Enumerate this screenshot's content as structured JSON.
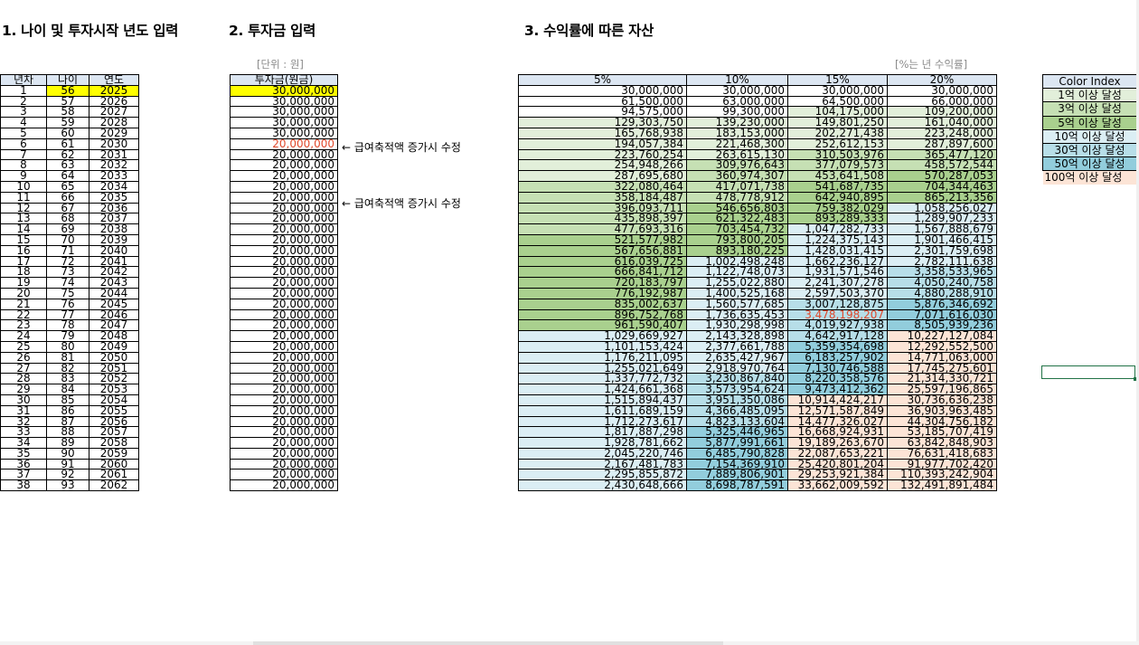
{
  "titles": {
    "s1": "1. 나이 및 투자시작 년도 입력",
    "s2": "2. 투자금 입력",
    "s3": "3. 수익률에 따른 자산"
  },
  "units": {
    "won": "[단위 : 원]",
    "rate": "[%는 년 수익률]"
  },
  "left_headers": [
    "년차",
    "나이",
    "연도"
  ],
  "invest_header": "투자금(원금)",
  "rate_headers": [
    "5%",
    "10%",
    "15%",
    "20%"
  ],
  "notes": [
    {
      "row": 6,
      "text": "← 급여축적액 증가시 수정"
    },
    {
      "row": 11,
      "text": "← 급여축적액 증가시 수정"
    }
  ],
  "colors": {
    "yellow": "#ffff00",
    "tier1": "#e2efda",
    "tier3": "#c6e0b4",
    "tier5": "#a9d08e",
    "tier10": "#dbeef4",
    "tier30": "#b7dee8",
    "tier50": "#92cddc",
    "tier100": "#fce4d6",
    "header": "#dce6f2",
    "red_text": "#e0482b"
  },
  "color_index": {
    "title": "Color Index",
    "items": [
      {
        "label": "1억 이상 달성",
        "color": "#e2efda"
      },
      {
        "label": "3억 이상 달성",
        "color": "#c6e0b4"
      },
      {
        "label": "5억 이상 달성",
        "color": "#a9d08e"
      },
      {
        "label": "10억 이상 달성",
        "color": "#dbeef4"
      },
      {
        "label": "30억 이상 달성",
        "color": "#b7dee8"
      },
      {
        "label": "50억 이상 달성",
        "color": "#92cddc"
      },
      {
        "label": "100억 이상 달성",
        "color": "#fce4d6"
      }
    ]
  },
  "rows": [
    {
      "n": "1",
      "age": "56",
      "year": "2025",
      "invest": "30,000,000",
      "vals": [
        "30,000,000",
        "30,000,000",
        "30,000,000",
        "30,000,000"
      ]
    },
    {
      "n": "2",
      "age": "57",
      "year": "2026",
      "invest": "30,000,000",
      "vals": [
        "61,500,000",
        "63,000,000",
        "64,500,000",
        "66,000,000"
      ]
    },
    {
      "n": "3",
      "age": "58",
      "year": "2027",
      "invest": "30,000,000",
      "vals": [
        "94,575,000",
        "99,300,000",
        "104,175,000",
        "109,200,000"
      ]
    },
    {
      "n": "4",
      "age": "59",
      "year": "2028",
      "invest": "30,000,000",
      "vals": [
        "129,303,750",
        "139,230,000",
        "149,801,250",
        "161,040,000"
      ]
    },
    {
      "n": "5",
      "age": "60",
      "year": "2029",
      "invest": "30,000,000",
      "vals": [
        "165,768,938",
        "183,153,000",
        "202,271,438",
        "223,248,000"
      ]
    },
    {
      "n": "6",
      "age": "61",
      "year": "2030",
      "invest": "20,000,000",
      "vals": [
        "194,057,384",
        "221,468,300",
        "252,612,153",
        "287,897,600"
      ]
    },
    {
      "n": "7",
      "age": "62",
      "year": "2031",
      "invest": "20,000,000",
      "vals": [
        "223,760,254",
        "263,615,130",
        "310,503,976",
        "365,477,120"
      ]
    },
    {
      "n": "8",
      "age": "63",
      "year": "2032",
      "invest": "20,000,000",
      "vals": [
        "254,948,266",
        "309,976,643",
        "377,079,573",
        "458,572,544"
      ]
    },
    {
      "n": "9",
      "age": "64",
      "year": "2033",
      "invest": "20,000,000",
      "vals": [
        "287,695,680",
        "360,974,307",
        "453,641,508",
        "570,287,053"
      ]
    },
    {
      "n": "10",
      "age": "65",
      "year": "2034",
      "invest": "20,000,000",
      "vals": [
        "322,080,464",
        "417,071,738",
        "541,687,735",
        "704,344,463"
      ]
    },
    {
      "n": "11",
      "age": "66",
      "year": "2035",
      "invest": "20,000,000",
      "vals": [
        "358,184,487",
        "478,778,912",
        "642,940,895",
        "865,213,356"
      ]
    },
    {
      "n": "12",
      "age": "67",
      "year": "2036",
      "invest": "20,000,000",
      "vals": [
        "396,093,711",
        "546,656,803",
        "759,382,029",
        "1,058,256,027"
      ]
    },
    {
      "n": "13",
      "age": "68",
      "year": "2037",
      "invest": "20,000,000",
      "vals": [
        "435,898,397",
        "621,322,483",
        "893,289,333",
        "1,289,907,233"
      ]
    },
    {
      "n": "14",
      "age": "69",
      "year": "2038",
      "invest": "20,000,000",
      "vals": [
        "477,693,316",
        "703,454,732",
        "1,047,282,733",
        "1,567,888,679"
      ]
    },
    {
      "n": "15",
      "age": "70",
      "year": "2039",
      "invest": "20,000,000",
      "vals": [
        "521,577,982",
        "793,800,205",
        "1,224,375,143",
        "1,901,466,415"
      ]
    },
    {
      "n": "16",
      "age": "71",
      "year": "2040",
      "invest": "20,000,000",
      "vals": [
        "567,656,881",
        "893,180,225",
        "1,428,031,415",
        "2,301,759,698"
      ]
    },
    {
      "n": "17",
      "age": "72",
      "year": "2041",
      "invest": "20,000,000",
      "vals": [
        "616,039,725",
        "1,002,498,248",
        "1,662,236,127",
        "2,782,111,638"
      ]
    },
    {
      "n": "18",
      "age": "73",
      "year": "2042",
      "invest": "20,000,000",
      "vals": [
        "666,841,712",
        "1,122,748,073",
        "1,931,571,546",
        "3,358,533,965"
      ]
    },
    {
      "n": "19",
      "age": "74",
      "year": "2043",
      "invest": "20,000,000",
      "vals": [
        "720,183,797",
        "1,255,022,880",
        "2,241,307,278",
        "4,050,240,758"
      ]
    },
    {
      "n": "20",
      "age": "75",
      "year": "2044",
      "invest": "20,000,000",
      "vals": [
        "776,192,987",
        "1,400,525,168",
        "2,597,503,370",
        "4,880,288,910"
      ]
    },
    {
      "n": "21",
      "age": "76",
      "year": "2045",
      "invest": "20,000,000",
      "vals": [
        "835,002,637",
        "1,560,577,685",
        "3,007,128,875",
        "5,876,346,692"
      ]
    },
    {
      "n": "22",
      "age": "77",
      "year": "2046",
      "invest": "20,000,000",
      "vals": [
        "896,752,768",
        "1,736,635,453",
        "3,478,198,207",
        "7,071,616,030"
      ]
    },
    {
      "n": "23",
      "age": "78",
      "year": "2047",
      "invest": "20,000,000",
      "vals": [
        "961,590,407",
        "1,930,298,998",
        "4,019,927,938",
        "8,505,939,236"
      ]
    },
    {
      "n": "24",
      "age": "79",
      "year": "2048",
      "invest": "20,000,000",
      "vals": [
        "1,029,669,927",
        "2,143,328,898",
        "4,642,917,128",
        "10,227,127,084"
      ]
    },
    {
      "n": "25",
      "age": "80",
      "year": "2049",
      "invest": "20,000,000",
      "vals": [
        "1,101,153,424",
        "2,377,661,788",
        "5,359,354,698",
        "12,292,552,500"
      ]
    },
    {
      "n": "26",
      "age": "81",
      "year": "2050",
      "invest": "20,000,000",
      "vals": [
        "1,176,211,095",
        "2,635,427,967",
        "6,183,257,902",
        "14,771,063,000"
      ]
    },
    {
      "n": "27",
      "age": "82",
      "year": "2051",
      "invest": "20,000,000",
      "vals": [
        "1,255,021,649",
        "2,918,970,764",
        "7,130,746,588",
        "17,745,275,601"
      ]
    },
    {
      "n": "28",
      "age": "83",
      "year": "2052",
      "invest": "20,000,000",
      "vals": [
        "1,337,772,732",
        "3,230,867,840",
        "8,220,358,576",
        "21,314,330,721"
      ]
    },
    {
      "n": "29",
      "age": "84",
      "year": "2053",
      "invest": "20,000,000",
      "vals": [
        "1,424,661,368",
        "3,573,954,624",
        "9,473,412,362",
        "25,597,196,865"
      ]
    },
    {
      "n": "30",
      "age": "85",
      "year": "2054",
      "invest": "20,000,000",
      "vals": [
        "1,515,894,437",
        "3,951,350,086",
        "10,914,424,217",
        "30,736,636,238"
      ]
    },
    {
      "n": "31",
      "age": "86",
      "year": "2055",
      "invest": "20,000,000",
      "vals": [
        "1,611,689,159",
        "4,366,485,095",
        "12,571,587,849",
        "36,903,963,485"
      ]
    },
    {
      "n": "32",
      "age": "87",
      "year": "2056",
      "invest": "20,000,000",
      "vals": [
        "1,712,273,617",
        "4,823,133,604",
        "14,477,326,027",
        "44,304,756,182"
      ]
    },
    {
      "n": "33",
      "age": "88",
      "year": "2057",
      "invest": "20,000,000",
      "vals": [
        "1,817,887,298",
        "5,325,446,965",
        "16,668,924,931",
        "53,185,707,419"
      ]
    },
    {
      "n": "34",
      "age": "89",
      "year": "2058",
      "invest": "20,000,000",
      "vals": [
        "1,928,781,662",
        "5,877,991,661",
        "19,189,263,670",
        "63,842,848,903"
      ]
    },
    {
      "n": "35",
      "age": "90",
      "year": "2059",
      "invest": "20,000,000",
      "vals": [
        "2,045,220,746",
        "6,485,790,828",
        "22,087,653,221",
        "76,631,418,683"
      ]
    },
    {
      "n": "36",
      "age": "91",
      "year": "2060",
      "invest": "20,000,000",
      "vals": [
        "2,167,481,783",
        "7,154,369,910",
        "25,420,801,204",
        "91,977,702,420"
      ]
    },
    {
      "n": "37",
      "age": "92",
      "year": "2061",
      "invest": "20,000,000",
      "vals": [
        "2,295,855,872",
        "7,889,806,901",
        "29,253,921,384",
        "110,393,242,904"
      ]
    },
    {
      "n": "38",
      "age": "93",
      "year": "2062",
      "invest": "20,000,000",
      "vals": [
        "2,430,648,666",
        "8,698,787,591",
        "33,662,009,592",
        "132,491,891,484"
      ]
    }
  ]
}
